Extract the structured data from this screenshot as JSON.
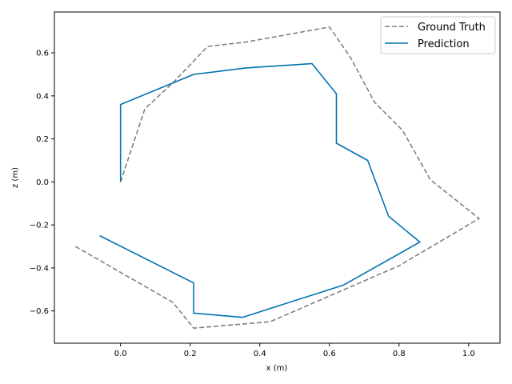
{
  "chart_data": {
    "type": "line",
    "title": "",
    "xlabel": "x (m)",
    "ylabel": "z (m)",
    "xlim": [
      -0.19,
      1.09
    ],
    "ylim": [
      -0.75,
      0.79
    ],
    "xticks": [
      0.0,
      0.2,
      0.4,
      0.6,
      0.8,
      1.0
    ],
    "xtick_labels": [
      "0.0",
      "0.2",
      "0.4",
      "0.6",
      "0.8",
      "1.0"
    ],
    "yticks": [
      -0.6,
      -0.4,
      -0.2,
      0.0,
      0.2,
      0.4,
      0.6
    ],
    "ytick_labels": [
      "−0.6",
      "−0.4",
      "−0.2",
      "0.0",
      "0.2",
      "0.4",
      "0.6"
    ],
    "grid": false,
    "legend_position": "top-right",
    "series": [
      {
        "name": "Ground Truth",
        "color": "#808080",
        "dash": "dashed",
        "x": [
          0.0,
          0.07,
          0.15,
          0.25,
          0.36,
          0.6,
          0.66,
          0.73,
          0.81,
          0.89,
          1.03,
          0.8,
          0.43,
          0.21,
          0.15,
          -0.13
        ],
        "y": [
          0.0,
          0.34,
          0.46,
          0.63,
          0.65,
          0.72,
          0.58,
          0.37,
          0.24,
          0.01,
          -0.17,
          -0.39,
          -0.65,
          -0.68,
          -0.56,
          -0.3
        ]
      },
      {
        "name": "Prediction",
        "color": "#0072B2",
        "dash": "solid",
        "x": [
          0.0,
          0.0,
          0.21,
          0.36,
          0.55,
          0.62,
          0.62,
          0.71,
          0.77,
          0.86,
          0.64,
          0.35,
          0.21,
          0.21,
          -0.06
        ],
        "y": [
          0.0,
          0.36,
          0.5,
          0.53,
          0.55,
          0.41,
          0.18,
          0.1,
          -0.16,
          -0.28,
          -0.48,
          -0.63,
          -0.61,
          -0.47,
          -0.25
        ]
      }
    ]
  }
}
